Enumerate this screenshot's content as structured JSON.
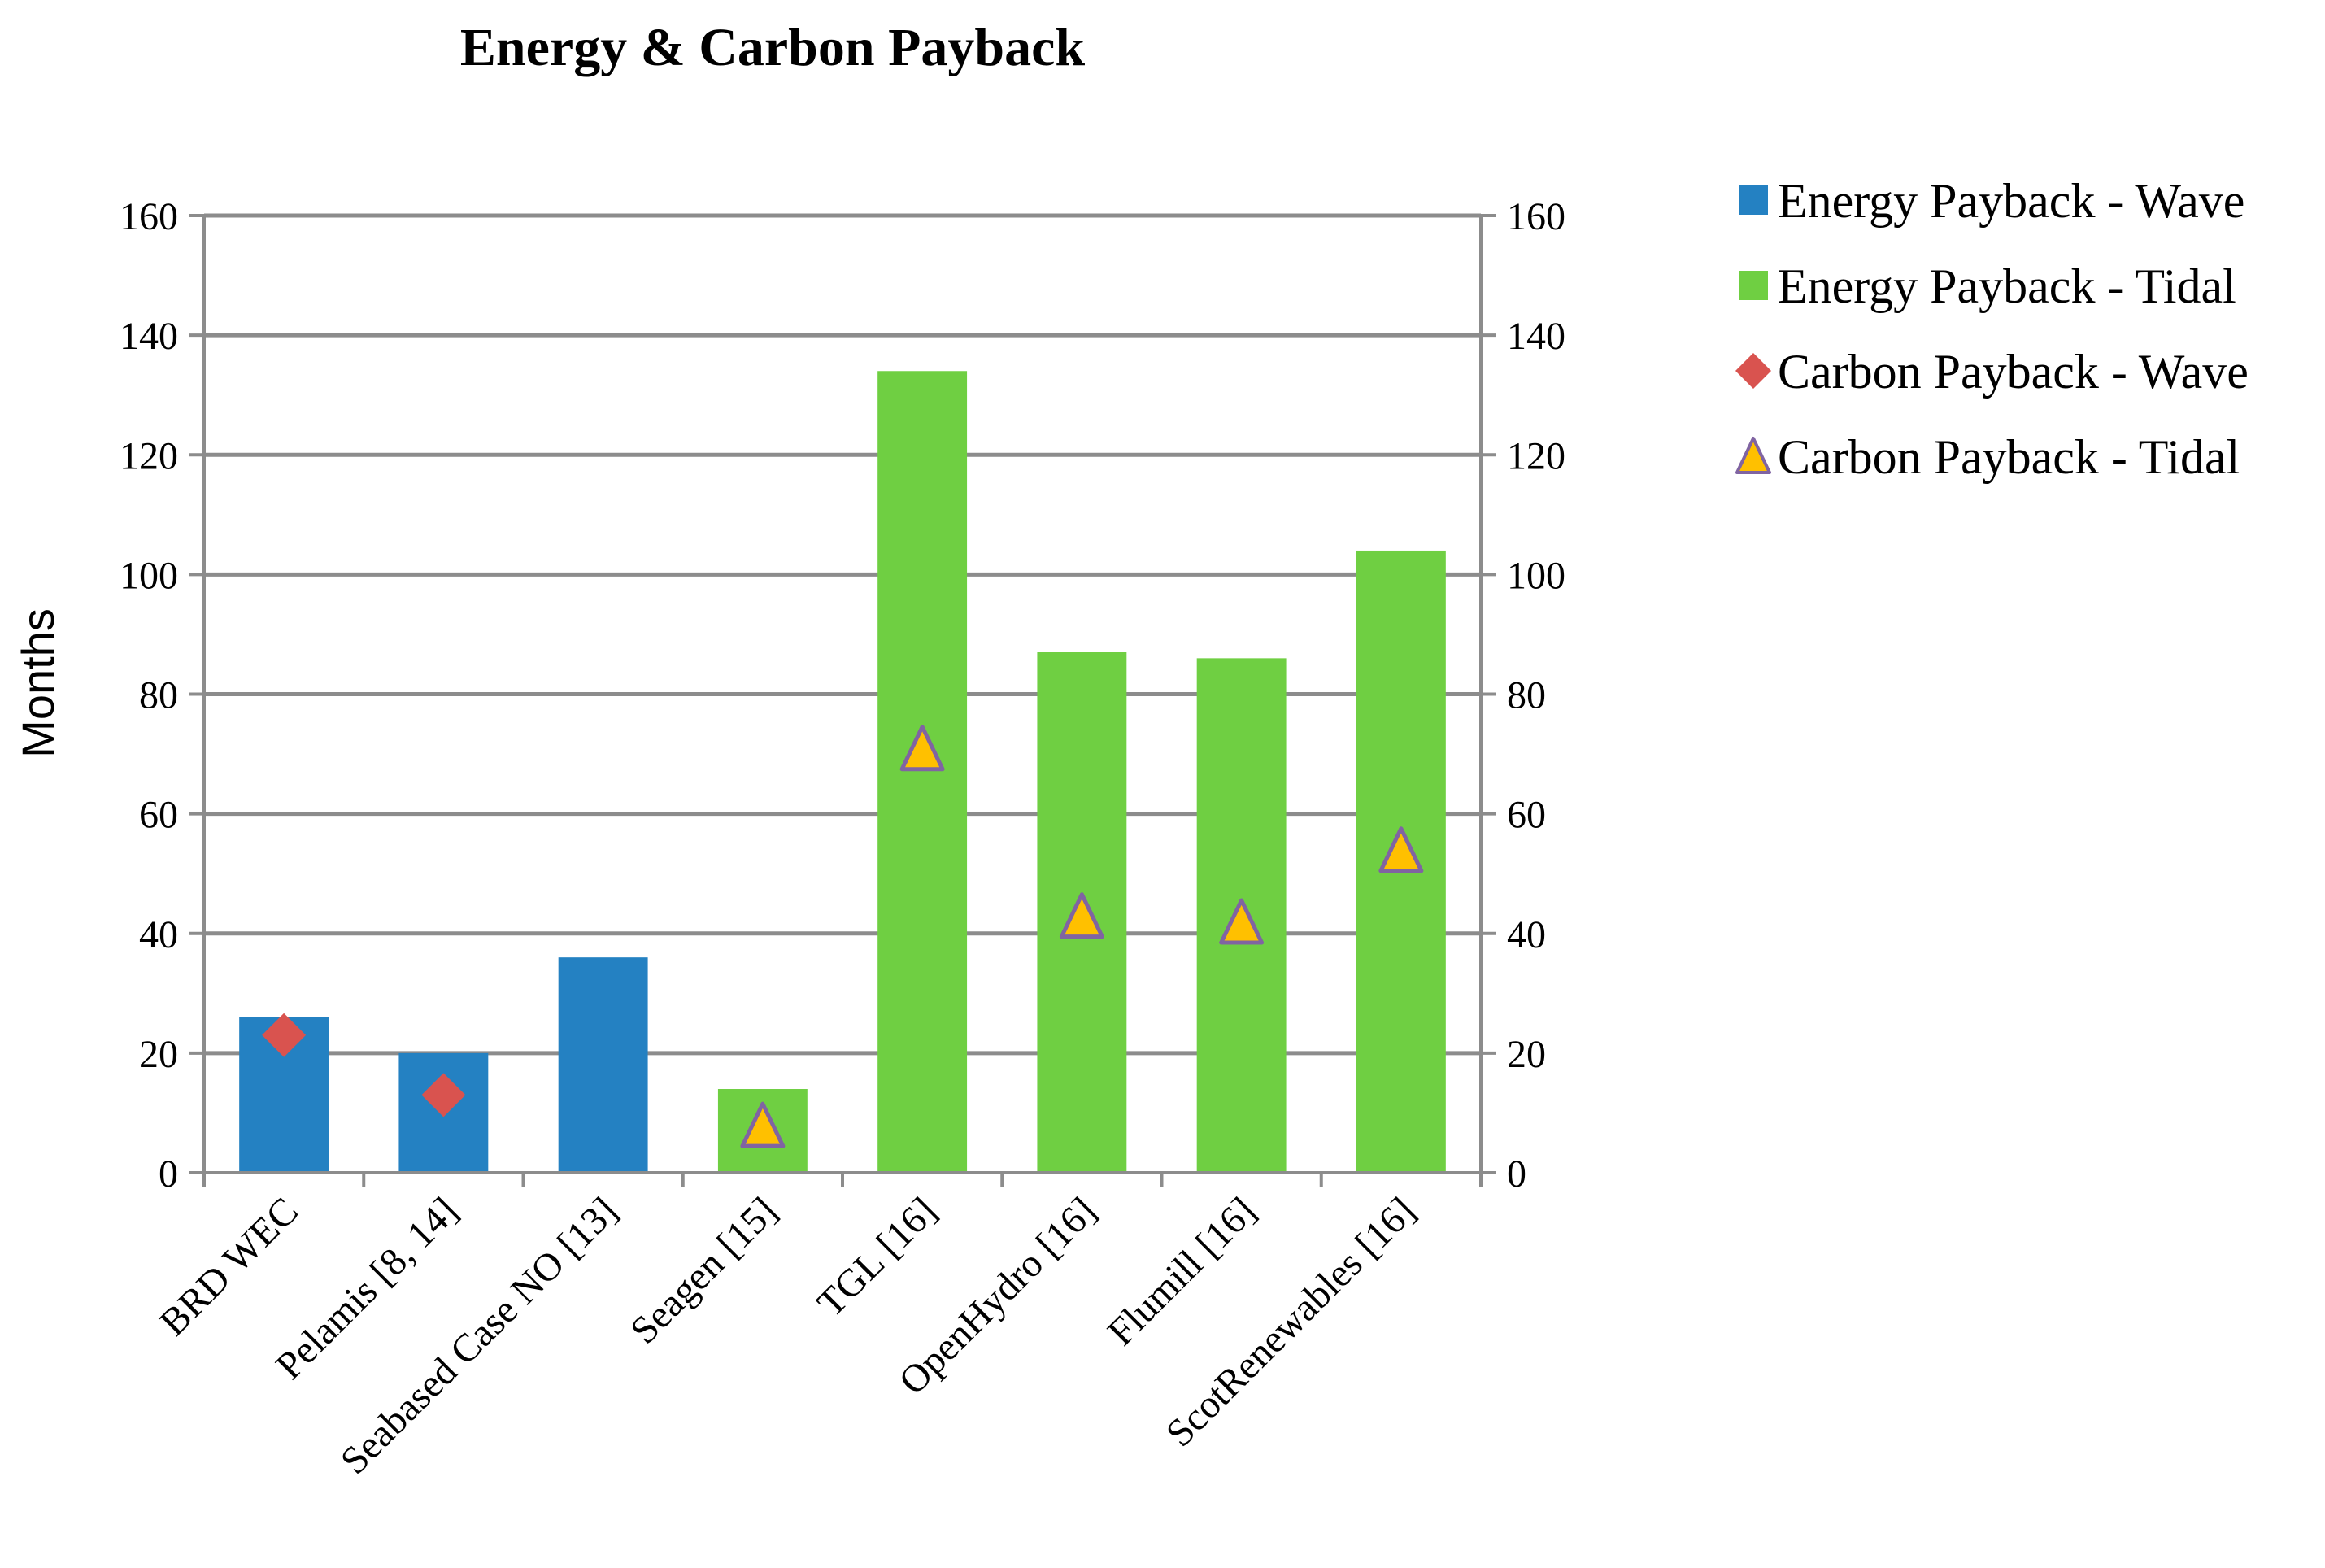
{
  "chart_data": {
    "type": "bar",
    "title": "Energy & Carbon Payback",
    "xlabel": "",
    "ylabel": "Months",
    "ylim": [
      0,
      160
    ],
    "y2lim": [
      0,
      160
    ],
    "y_ticks": [
      "0",
      "20",
      "40",
      "60",
      "80",
      "100",
      "120",
      "140",
      "160"
    ],
    "y2_ticks": [
      "0",
      "20",
      "40",
      "60",
      "80",
      "100",
      "120",
      "140",
      "160"
    ],
    "grid": true,
    "legend_position": "top-right outside",
    "categories": [
      "BRD WEC",
      "Pelamis [8, 14]",
      "Seabased Case NO [13]",
      "Seagen [15]",
      "TGL [16]",
      "OpenHydro [16]",
      "Flumill [16]",
      "ScotRenewables [16]"
    ],
    "series": [
      {
        "name": "Energy Payback - Wave",
        "kind": "bar",
        "color": "#2481c2",
        "values": [
          26,
          20,
          36,
          null,
          null,
          null,
          null,
          null
        ]
      },
      {
        "name": "Energy Payback - Tidal",
        "kind": "bar",
        "color": "#6fcf42",
        "values": [
          null,
          null,
          null,
          14,
          134,
          87,
          86,
          104
        ]
      },
      {
        "name": "Carbon Payback - Wave",
        "kind": "diamond",
        "color": "#d9534f",
        "values": [
          23,
          13,
          null,
          null,
          null,
          null,
          null,
          null
        ]
      },
      {
        "name": "Carbon Payback - Tidal",
        "kind": "triangle",
        "color": "#ffc000",
        "stroke": "#8064a2",
        "values": [
          null,
          null,
          null,
          8,
          71,
          43,
          42,
          54
        ]
      }
    ]
  }
}
